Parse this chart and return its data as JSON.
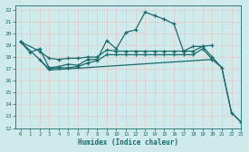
{
  "xlabel": "Humidex (Indice chaleur)",
  "xlim": [
    -0.5,
    23
  ],
  "ylim": [
    12,
    22.4
  ],
  "yticks": [
    12,
    13,
    14,
    15,
    16,
    17,
    18,
    19,
    20,
    21,
    22
  ],
  "xticks": [
    0,
    1,
    2,
    3,
    4,
    5,
    6,
    7,
    8,
    9,
    10,
    11,
    12,
    13,
    14,
    15,
    16,
    17,
    18,
    19,
    20,
    21,
    22,
    23
  ],
  "bg_color": "#ceeaea",
  "grid_color": "#b8d8d8",
  "line_color": "#1a6b6b",
  "line1_x": [
    0,
    1,
    2,
    3,
    4,
    5,
    6,
    7,
    8,
    9,
    10,
    11,
    12,
    13,
    14,
    15,
    16,
    17,
    18,
    19,
    20,
    21,
    22,
    23
  ],
  "line1_y": [
    19.3,
    18.4,
    18.7,
    17.1,
    17.2,
    17.4,
    17.3,
    17.8,
    17.8,
    19.4,
    18.7,
    20.1,
    20.3,
    21.8,
    21.5,
    21.2,
    20.8,
    18.5,
    18.9,
    18.9,
    18.0,
    17.1,
    13.3,
    12.5
  ],
  "line2_x": [
    0,
    2,
    3,
    4,
    5,
    6,
    7,
    8,
    9,
    10,
    11,
    12,
    13,
    14,
    15,
    16,
    17,
    18,
    19,
    20
  ],
  "line2_y": [
    19.3,
    18.5,
    17.9,
    17.8,
    17.9,
    17.9,
    18.0,
    18.0,
    18.6,
    18.5,
    18.5,
    18.5,
    18.5,
    18.5,
    18.5,
    18.5,
    18.5,
    18.5,
    18.9,
    19.0
  ],
  "line3_x": [
    2,
    3,
    4,
    5,
    6,
    7,
    8,
    9,
    10,
    11,
    12,
    13,
    14,
    15,
    16,
    17,
    18,
    19,
    20
  ],
  "line3_y": [
    17.8,
    17.0,
    17.1,
    17.1,
    17.2,
    17.5,
    17.7,
    18.2,
    18.2,
    18.2,
    18.2,
    18.2,
    18.2,
    18.2,
    18.2,
    18.2,
    18.2,
    18.7,
    17.8
  ],
  "line4_x": [
    0,
    2,
    3,
    20,
    21,
    22,
    23
  ],
  "line4_y": [
    19.3,
    17.8,
    16.9,
    17.8,
    17.1,
    13.3,
    12.5
  ]
}
